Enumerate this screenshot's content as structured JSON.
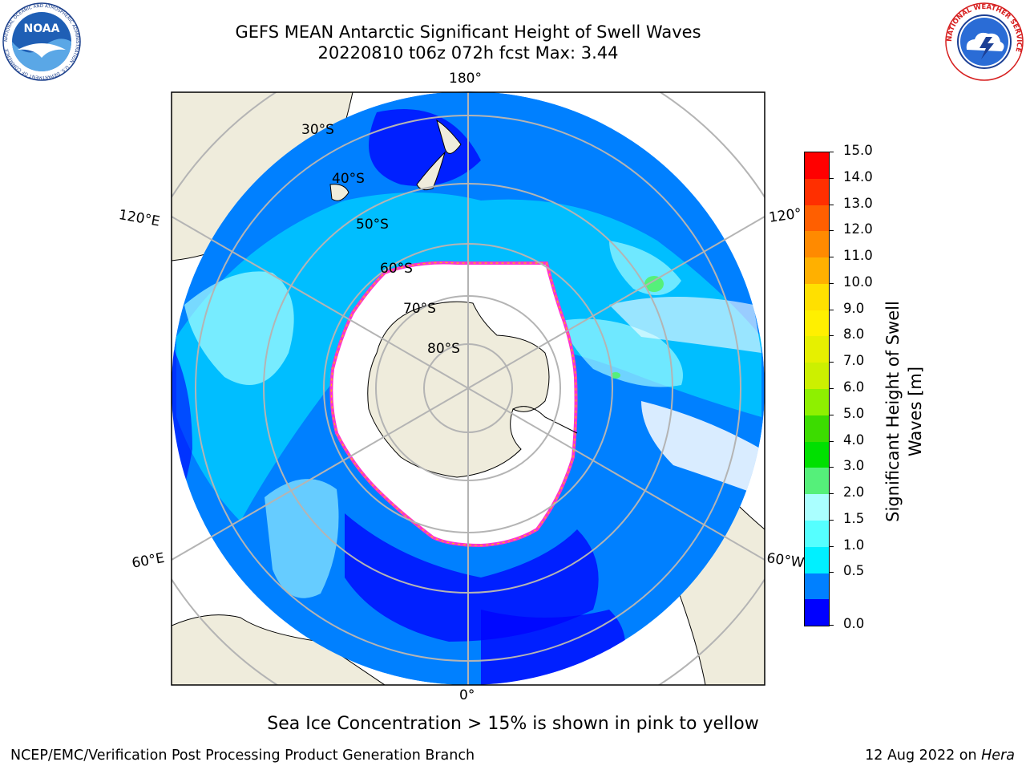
{
  "header": {
    "title_line1": "GEFS MEAN Antarctic Significant Height of Swell Waves",
    "title_line2": "20220810 t06z 072h fcst   Max: 3.44",
    "noaa_logo_text": "NOAA",
    "noaa_ring_text": "NATIONAL OCEANIC AND ATMOSPHERIC ADMINISTRATION · U.S. DEPARTMENT OF COMMERCE",
    "nws_ring_text": "NATIONAL WEATHER SERVICE"
  },
  "map": {
    "projection": "south-polar-stereographic",
    "longitude_labels": {
      "top": "180°",
      "bottom": "0°",
      "upper_left": "120°E",
      "upper_right": "120°",
      "lower_left": "60°E",
      "lower_right": "60°W"
    },
    "latitude_labels": [
      "30°S",
      "40°S",
      "50°S",
      "60°S",
      "70°S",
      "80°S"
    ],
    "colors": {
      "land": "#efecdc",
      "grid": "#b4b4b4",
      "ice_edge": "#ff33cc",
      "ice_inner": "#ffc000"
    }
  },
  "colorbar": {
    "label_line1": "Significant Height of Swell",
    "label_line2": "Waves [m]",
    "ticks": [
      "15.0",
      "14.0",
      "13.0",
      "12.0",
      "11.0",
      "10.0",
      "9.0",
      "8.0",
      "7.0",
      "6.0",
      "5.0",
      "4.0",
      "3.0",
      "2.0",
      "1.5",
      "1.0",
      "0.5",
      "0.0"
    ],
    "colors": [
      "#ff0000",
      "#ff2f00",
      "#ff5f00",
      "#ff8a00",
      "#ffb000",
      "#ffe000",
      "#fff000",
      "#e6f000",
      "#ccf000",
      "#8ef000",
      "#3cdc00",
      "#00e000",
      "#55f07a",
      "#aaffff",
      "#55ffff",
      "#00f0ff",
      "#0080ff",
      "#0000ff"
    ]
  },
  "footer": {
    "note": "Sea Ice Concentration > 15% is shown in pink to yellow",
    "credit_left": "NCEP/EMC/Verification Post Processing Product Generation Branch",
    "credit_right_prefix": "12 Aug 2022 on ",
    "credit_right_host": "Hera"
  }
}
